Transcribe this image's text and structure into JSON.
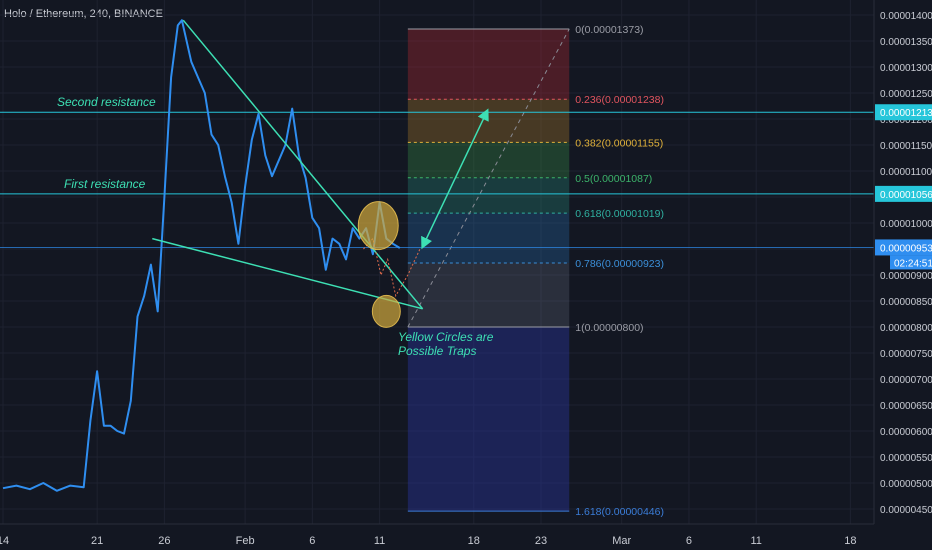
{
  "header": {
    "title": "Holo / Ethereum, 240, BINANCE"
  },
  "chart_data": {
    "type": "line",
    "title": "Holo / Ethereum, 240, BINANCE",
    "x_ticks": [
      "14",
      "21",
      "26",
      "Feb",
      "6",
      "11",
      "18",
      "23",
      "Mar",
      "6",
      "11",
      "18"
    ],
    "y_ticks": [
      "0.00001400",
      "0.00001350",
      "0.00001300",
      "0.00001250",
      "0.00001200",
      "0.00001150",
      "0.00001100",
      "0.00001050",
      "0.00001000",
      "0.00000950",
      "0.00000900",
      "0.00000850",
      "0.00000800",
      "0.00000750",
      "0.00000700",
      "0.00000650",
      "0.00000600",
      "0.00000550",
      "0.00000500",
      "0.00000450"
    ],
    "ylim": [
      4.25e-06,
      1.42e-05
    ],
    "price_series": {
      "name": "HOT/ETH",
      "color": "#2f8ef0",
      "x_day": [
        14,
        15,
        16,
        17,
        18,
        19,
        20,
        20.5,
        21,
        21.5,
        22,
        22.5,
        23,
        23.5,
        24,
        24.5,
        25,
        25.5,
        26,
        26.5,
        27,
        27.3,
        28,
        28.5,
        29,
        29.5,
        30,
        30.5,
        31,
        31.5,
        32,
        32.5,
        33,
        33.5,
        34,
        34.5,
        35,
        35.5,
        36,
        36.5,
        37,
        37.5,
        38,
        38.5,
        39,
        39.5,
        40,
        40.5,
        41,
        41.5,
        42,
        42.5,
        43,
        43.5
      ],
      "y": [
        4.9e-06,
        4.95e-06,
        4.88e-06,
        5e-06,
        4.85e-06,
        4.95e-06,
        4.92e-06,
        6.2e-06,
        7.15e-06,
        6.1e-06,
        6.1e-06,
        6e-06,
        5.95e-06,
        6.58e-06,
        8.2e-06,
        8.6e-06,
        9.2e-06,
        8.3e-06,
        1.05e-05,
        1.28e-05,
        1.38e-05,
        1.39e-05,
        1.31e-05,
        1.28e-05,
        1.25e-05,
        1.17e-05,
        1.15e-05,
        1.09e-05,
        1.04e-05,
        9.6e-06,
        1.07e-05,
        1.16e-05,
        1.21e-05,
        1.13e-05,
        1.09e-05,
        1.12e-05,
        1.15e-05,
        1.22e-05,
        1.13e-05,
        1.087e-05,
        1.01e-05,
        9.9e-06,
        9.1e-06,
        9.7e-06,
        9.6e-06,
        9.3e-06,
        9.9e-06,
        9.7e-06,
        9.9e-06,
        9.4e-06,
        1.04e-05,
        9.7e-06,
        9.6e-06,
        9.52e-06
      ]
    },
    "trend_lines": [
      {
        "name": "upper-wedge-line",
        "color": "#3de0b4",
        "from": [
          27.4,
          1.39e-05
        ],
        "to": [
          45.2,
          8.35e-06
        ]
      },
      {
        "name": "lower-wedge-line",
        "color": "#3de0b4",
        "from": [
          25.1,
          9.7e-06
        ],
        "to": [
          45.2,
          8.35e-06
        ]
      },
      {
        "name": "projection-arrow",
        "color": "#3de0b4",
        "from": [
          45.3,
          9.6e-06
        ],
        "to": [
          49.9,
          1.21e-05
        ]
      }
    ],
    "horizontal_lines": [
      {
        "label": "Second resistance",
        "value": 1.213e-05,
        "color": "#26c6da"
      },
      {
        "label": "First resistance",
        "value": 1.056e-05,
        "color": "#26c6da"
      },
      {
        "label": "",
        "value": 9.53e-06,
        "color": "#2f8ef0"
      }
    ],
    "fibonacci": {
      "start_day": 44.1,
      "end_day": 56.1,
      "levels": [
        {
          "ratio": 0,
          "label": "0(0.00001373)",
          "value": 1.373e-05,
          "color": "#9b9da6"
        },
        {
          "ratio": 0.236,
          "label": "0.236(0.00001238)",
          "value": 1.238e-05,
          "color": "#e0545e"
        },
        {
          "ratio": 0.382,
          "label": "0.382(0.00001155)",
          "value": 1.155e-05,
          "color": "#e0b13a"
        },
        {
          "ratio": 0.5,
          "label": "0.5(0.00001087)",
          "value": 1.087e-05,
          "color": "#3cb36a"
        },
        {
          "ratio": 0.618,
          "label": "0.618(0.00001019)",
          "value": 1.019e-05,
          "color": "#2fb0a0"
        },
        {
          "ratio": 0.786,
          "label": "0.786(0.00000923)",
          "value": 9.23e-06,
          "color": "#3b8fd8"
        },
        {
          "ratio": 1,
          "label": "1(0.00000800)",
          "value": 8e-06,
          "color": "#9b9da6"
        },
        {
          "ratio": 1.618,
          "label": "1.618(0.00000446)",
          "value": 4.46e-06,
          "color": "#3b7dd8"
        }
      ]
    },
    "price_labels": [
      {
        "text": "0.00001213",
        "value": 1.213e-05,
        "bg": "#26c6da"
      },
      {
        "text": "0.00001056",
        "value": 1.056e-05,
        "bg": "#26c6da"
      },
      {
        "text": "0.00000953",
        "value": 9.53e-06,
        "bg": "#2f8ef0",
        "time": "02:24:51"
      }
    ],
    "annotations": {
      "second_resistance": "Second resistance",
      "first_resistance": "First resistance",
      "traps_line1": "Yellow Circles are",
      "traps_line2": "Possible Traps"
    },
    "trap_circles": [
      {
        "day": 41.9,
        "value": 9.95e-06
      },
      {
        "day": 42.5,
        "value": 8.3e-06
      }
    ]
  }
}
